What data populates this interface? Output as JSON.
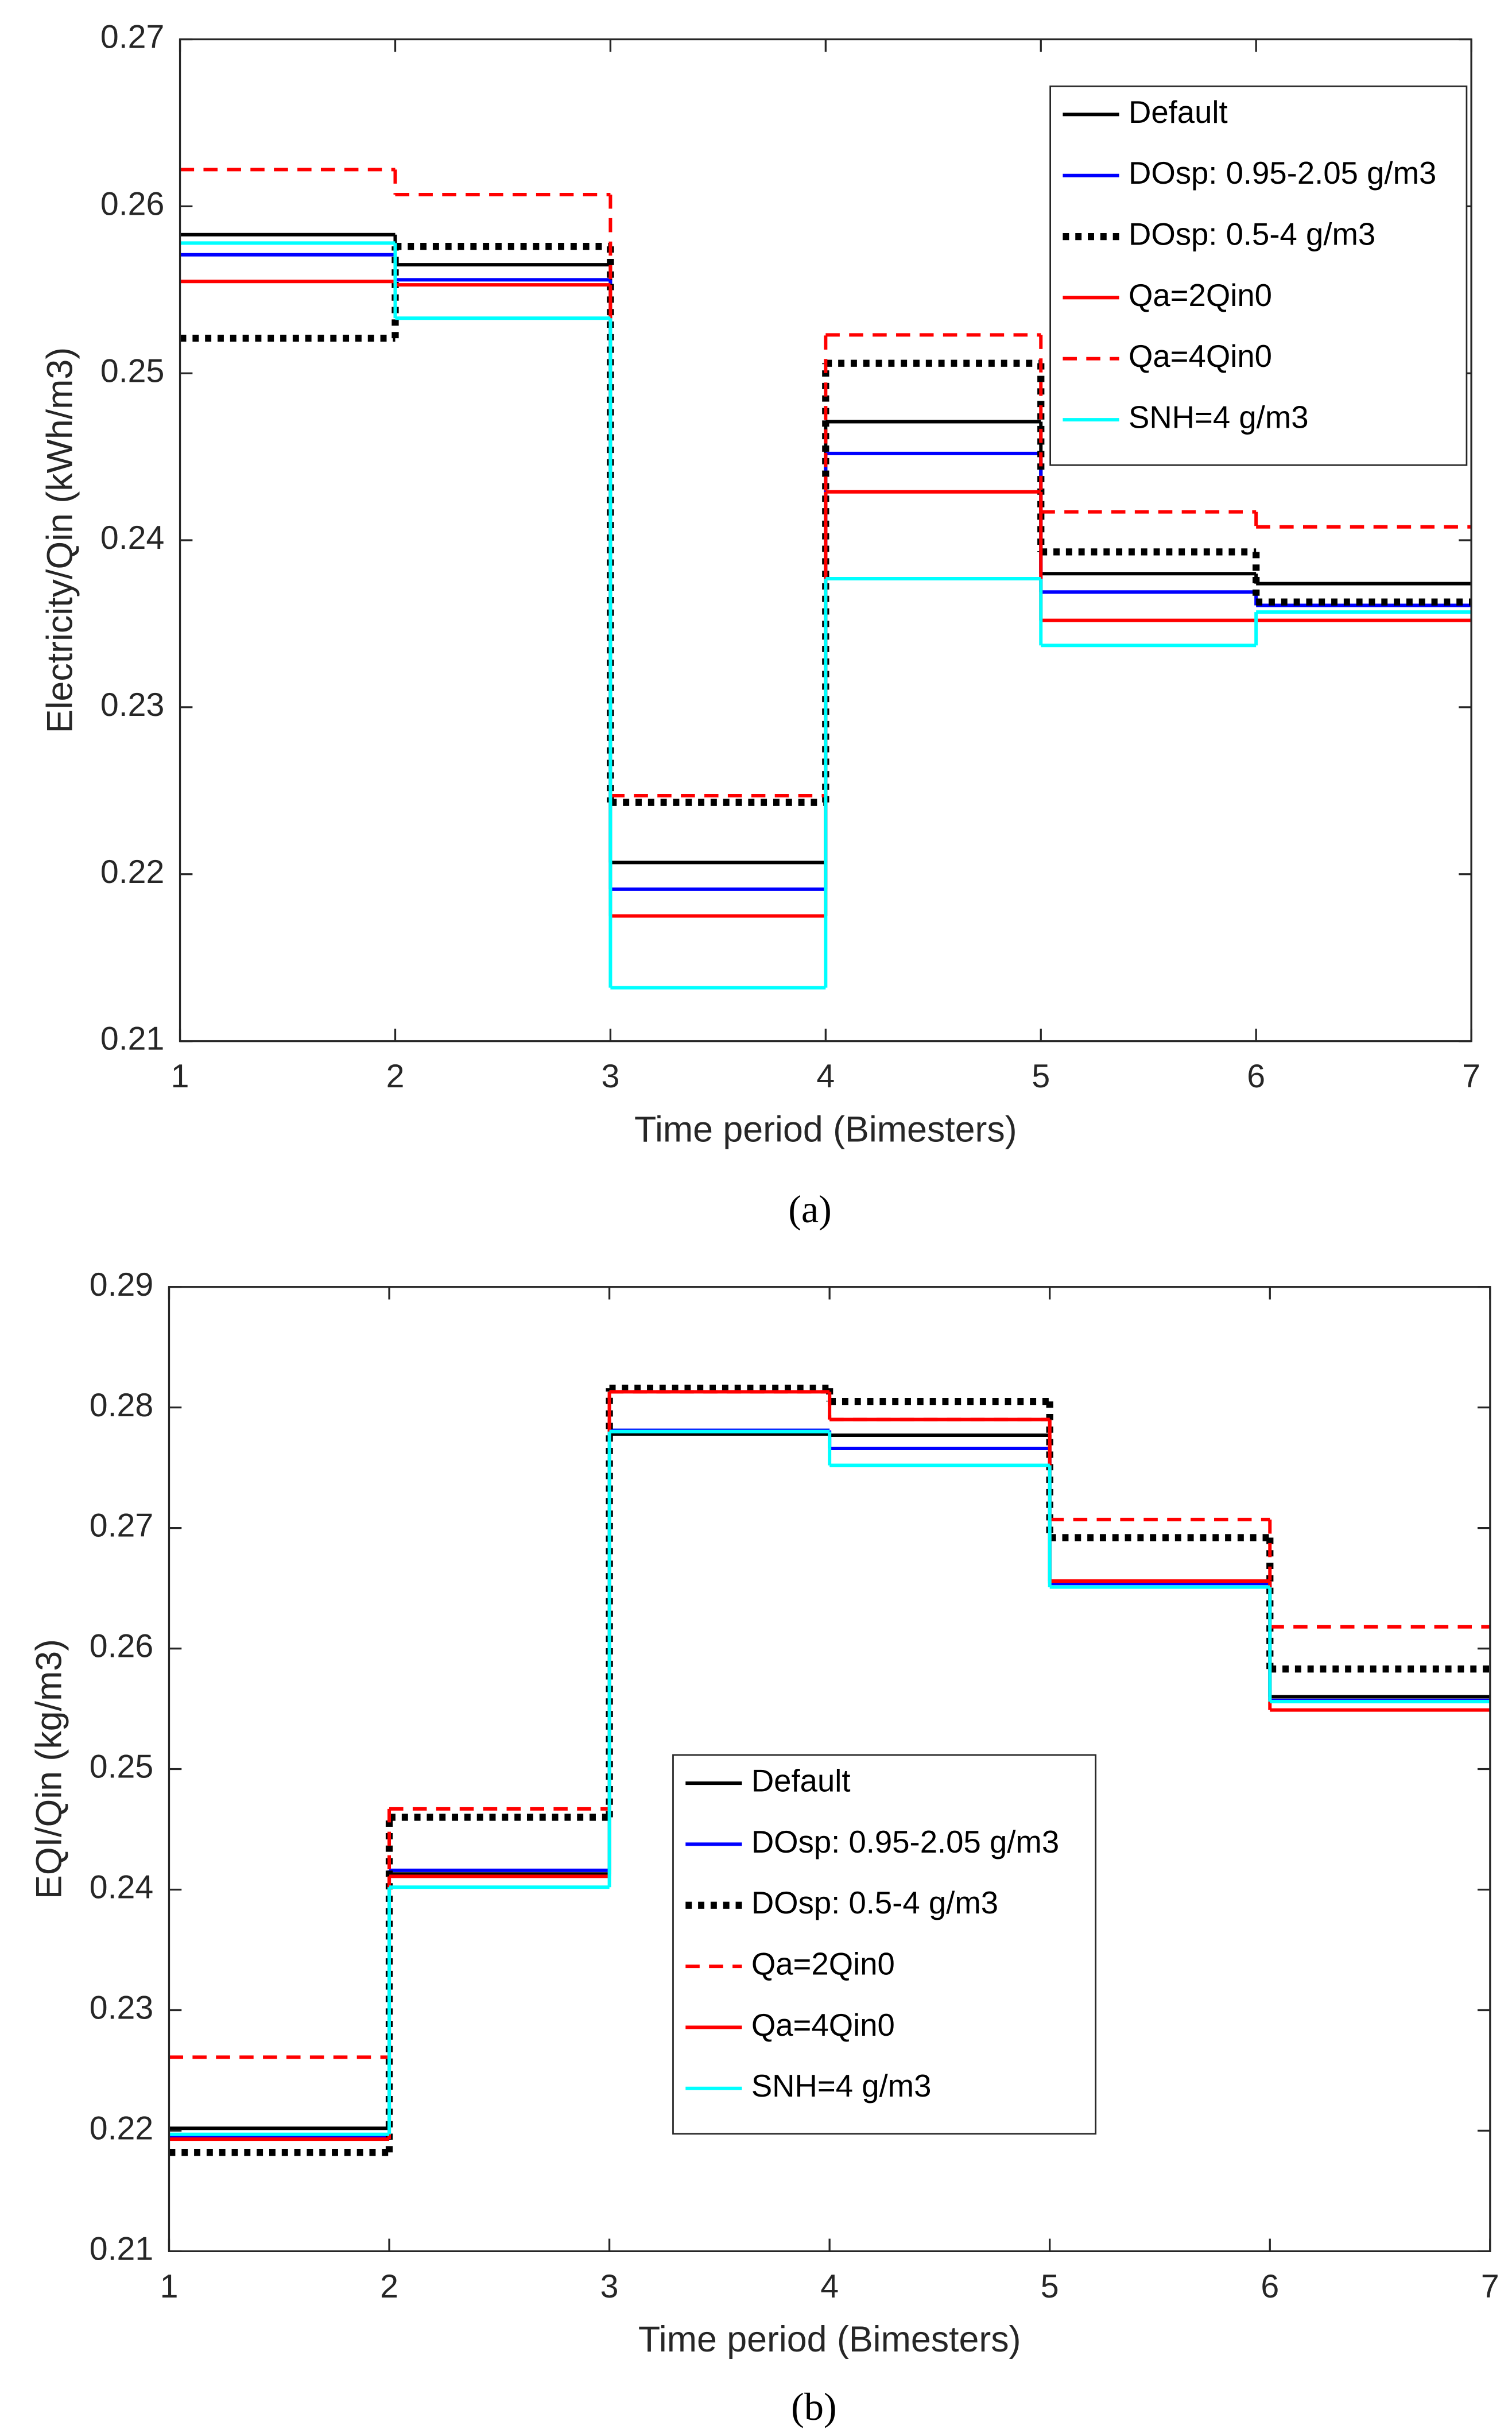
{
  "chart_data": [
    {
      "type": "step",
      "caption": "(a)",
      "xlabel": "Time period (Bimesters)",
      "ylabel": "Electricity/Qin (kWh/m3)",
      "x": [
        1,
        2,
        3,
        4,
        5,
        6
      ],
      "xlim": [
        1,
        7
      ],
      "xticks": [
        1,
        2,
        3,
        4,
        5,
        6,
        7
      ],
      "ylim": [
        0.21,
        0.27
      ],
      "yticks": [
        0.21,
        0.22,
        0.23,
        0.24,
        0.25,
        0.26,
        0.27
      ],
      "legend": "upper right",
      "series": [
        {
          "name": "Default",
          "color": "#000000",
          "style": "solid",
          "values": [
            0.2583,
            0.2565,
            0.2207,
            0.2471,
            0.238,
            0.2374
          ]
        },
        {
          "name": "DOsp: 0.95-2.05 g/m3",
          "color": "#0000ff",
          "style": "solid",
          "values": [
            0.2571,
            0.2556,
            0.2191,
            0.2452,
            0.2369,
            0.2361
          ]
        },
        {
          "name": "DOsp: 0.5-4 g/m3",
          "color": "#000000",
          "style": "dotted",
          "values": [
            0.2521,
            0.2576,
            0.2243,
            0.2506,
            0.2393,
            0.2363
          ]
        },
        {
          "name": "Qa=2Qin0",
          "color": "#ff0000",
          "style": "solid",
          "values": [
            0.2555,
            0.2553,
            0.2175,
            0.2429,
            0.2352,
            0.2352
          ]
        },
        {
          "name": "Qa=4Qin0",
          "color": "#ff0000",
          "style": "dashed",
          "values": [
            0.2622,
            0.2607,
            0.2247,
            0.2523,
            0.2417,
            0.2408
          ]
        },
        {
          "name": "SNH=4 g/m3",
          "color": "#00ffff",
          "style": "solid",
          "values": [
            0.2578,
            0.2533,
            0.2132,
            0.2377,
            0.2337,
            0.2357
          ]
        }
      ]
    },
    {
      "type": "step",
      "caption": "(b)",
      "xlabel": "Time period (Bimesters)",
      "ylabel": "EQI/Qin (kg/m3)",
      "x": [
        1,
        2,
        3,
        4,
        5,
        6
      ],
      "xlim": [
        1,
        7
      ],
      "xticks": [
        1,
        2,
        3,
        4,
        5,
        6,
        7
      ],
      "ylim": [
        0.21,
        0.29
      ],
      "yticks": [
        0.21,
        0.22,
        0.23,
        0.24,
        0.25,
        0.26,
        0.27,
        0.28,
        0.29
      ],
      "legend": "lower center",
      "series": [
        {
          "name": "Default",
          "color": "#000000",
          "style": "solid",
          "values": [
            0.2202,
            0.2413,
            0.2778,
            0.2777,
            0.2656,
            0.256
          ]
        },
        {
          "name": "DOsp: 0.95-2.05 g/m3",
          "color": "#0000ff",
          "style": "solid",
          "values": [
            0.2195,
            0.2416,
            0.2781,
            0.2766,
            0.2654,
            0.2557
          ]
        },
        {
          "name": "DOsp: 0.5-4 g/m3",
          "color": "#000000",
          "style": "dotted",
          "values": [
            0.2182,
            0.246,
            0.2816,
            0.2805,
            0.2692,
            0.2583
          ]
        },
        {
          "name": "Qa=2Qin0",
          "color": "#ff0000",
          "style": "dashed",
          "values": [
            0.2261,
            0.2467,
            0.2813,
            0.279,
            0.2707,
            0.2618
          ]
        },
        {
          "name": "Qa=4Qin0",
          "color": "#ff0000",
          "style": "solid",
          "values": [
            0.2193,
            0.2411,
            0.2813,
            0.279,
            0.2656,
            0.2549
          ]
        },
        {
          "name": "SNH=4 g/m3",
          "color": "#00ffff",
          "style": "solid",
          "values": [
            0.2197,
            0.2402,
            0.278,
            0.2752,
            0.2651,
            0.2556
          ]
        }
      ]
    }
  ]
}
